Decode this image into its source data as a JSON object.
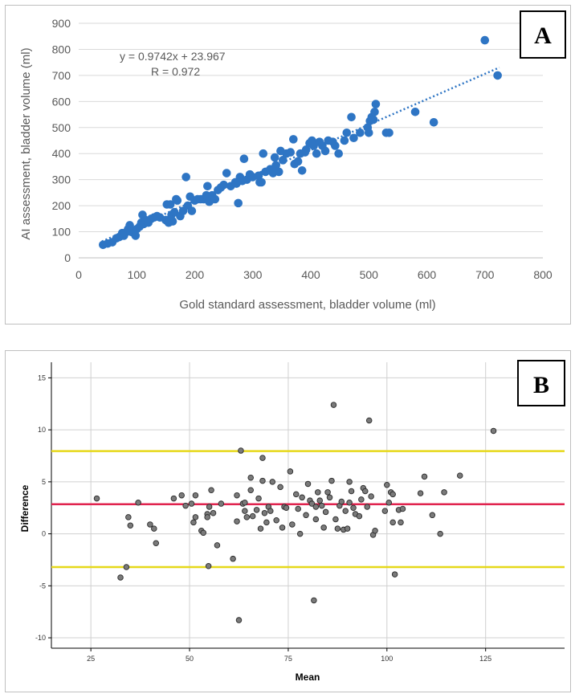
{
  "chart_data": [
    {
      "panel_label": "A",
      "type": "scatter",
      "xlabel": "Gold standard assessment, bladder volume (ml)",
      "ylabel": "AI assessment, bladder volume (ml)",
      "xlim": [
        0,
        800
      ],
      "ylim": [
        0,
        900
      ],
      "xticks": [
        0,
        100,
        200,
        300,
        400,
        500,
        600,
        700,
        800
      ],
      "yticks": [
        0,
        100,
        200,
        300,
        400,
        500,
        600,
        700,
        800,
        900
      ],
      "grid": "horizontal",
      "equation": "y = 0.9742x + 23.967",
      "r_label": "R = 0.972",
      "trendline": {
        "slope": 0.9742,
        "intercept": 23.967,
        "x_range": [
          40,
          725
        ],
        "style": "dotted"
      },
      "colors": {
        "points": "#2e75c4",
        "trend": "#2e75c4",
        "grid": "#d9d9d9"
      },
      "points": [
        [
          42,
          50
        ],
        [
          50,
          55
        ],
        [
          58,
          60
        ],
        [
          65,
          75
        ],
        [
          70,
          80
        ],
        [
          75,
          95
        ],
        [
          78,
          85
        ],
        [
          80,
          95
        ],
        [
          85,
          110
        ],
        [
          88,
          125
        ],
        [
          90,
          100
        ],
        [
          95,
          95
        ],
        [
          98,
          85
        ],
        [
          100,
          110
        ],
        [
          105,
          120
        ],
        [
          108,
          135
        ],
        [
          110,
          165
        ],
        [
          112,
          130
        ],
        [
          115,
          145
        ],
        [
          120,
          135
        ],
        [
          125,
          150
        ],
        [
          130,
          155
        ],
        [
          135,
          160
        ],
        [
          140,
          155
        ],
        [
          150,
          145
        ],
        [
          152,
          205
        ],
        [
          155,
          135
        ],
        [
          158,
          205
        ],
        [
          160,
          165
        ],
        [
          162,
          140
        ],
        [
          165,
          175
        ],
        [
          168,
          225
        ],
        [
          170,
          220
        ],
        [
          175,
          160
        ],
        [
          180,
          180
        ],
        [
          185,
          310
        ],
        [
          188,
          200
        ],
        [
          192,
          235
        ],
        [
          195,
          180
        ],
        [
          200,
          220
        ],
        [
          205,
          225
        ],
        [
          210,
          225
        ],
        [
          215,
          225
        ],
        [
          220,
          240
        ],
        [
          222,
          275
        ],
        [
          225,
          215
        ],
        [
          230,
          240
        ],
        [
          235,
          225
        ],
        [
          240,
          260
        ],
        [
          245,
          270
        ],
        [
          250,
          280
        ],
        [
          255,
          325
        ],
        [
          262,
          275
        ],
        [
          270,
          290
        ],
        [
          272,
          285
        ],
        [
          275,
          210
        ],
        [
          278,
          310
        ],
        [
          282,
          295
        ],
        [
          285,
          380
        ],
        [
          290,
          300
        ],
        [
          295,
          320
        ],
        [
          300,
          310
        ],
        [
          310,
          315
        ],
        [
          312,
          290
        ],
        [
          315,
          290
        ],
        [
          318,
          400
        ],
        [
          322,
          330
        ],
        [
          330,
          340
        ],
        [
          335,
          325
        ],
        [
          338,
          385
        ],
        [
          340,
          355
        ],
        [
          345,
          330
        ],
        [
          348,
          410
        ],
        [
          352,
          375
        ],
        [
          358,
          400
        ],
        [
          365,
          405
        ],
        [
          370,
          455
        ],
        [
          372,
          360
        ],
        [
          378,
          370
        ],
        [
          382,
          400
        ],
        [
          385,
          335
        ],
        [
          390,
          405
        ],
        [
          392,
          415
        ],
        [
          398,
          440
        ],
        [
          402,
          450
        ],
        [
          405,
          430
        ],
        [
          410,
          400
        ],
        [
          415,
          445
        ],
        [
          420,
          430
        ],
        [
          425,
          410
        ],
        [
          430,
          450
        ],
        [
          438,
          445
        ],
        [
          442,
          430
        ],
        [
          448,
          400
        ],
        [
          458,
          450
        ],
        [
          462,
          480
        ],
        [
          470,
          540
        ],
        [
          474,
          460
        ],
        [
          485,
          480
        ],
        [
          498,
          500
        ],
        [
          500,
          480
        ],
        [
          502,
          525
        ],
        [
          505,
          540
        ],
        [
          508,
          530
        ],
        [
          510,
          560
        ],
        [
          512,
          590
        ],
        [
          530,
          480
        ],
        [
          535,
          480
        ],
        [
          580,
          560
        ],
        [
          612,
          520
        ],
        [
          700,
          835
        ],
        [
          722,
          700
        ]
      ]
    },
    {
      "panel_label": "B",
      "type": "scatter",
      "xlabel": "Mean",
      "ylabel": "Difference",
      "xlim": [
        15,
        145
      ],
      "ylim": [
        -11,
        16.5
      ],
      "xticks": [
        25,
        50,
        75,
        100,
        125
      ],
      "yticks": [
        -10,
        -5,
        0,
        5,
        10,
        15
      ],
      "grid": "both",
      "reference_lines": [
        {
          "name": "upper-limit-of-agreement",
          "y": 7.95,
          "color": "#e6d81a"
        },
        {
          "name": "mean-difference",
          "y": 2.85,
          "color": "#e0234e"
        },
        {
          "name": "lower-limit-of-agreement",
          "y": -3.2,
          "color": "#e6d81a"
        }
      ],
      "colors": {
        "points": "#7a7a7a",
        "point_stroke": "#2b2b2b",
        "grid": "#d0d0d0"
      },
      "points": [
        [
          26.5,
          3.4
        ],
        [
          32.5,
          -4.2
        ],
        [
          34,
          -3.2
        ],
        [
          34.5,
          1.6
        ],
        [
          35,
          0.8
        ],
        [
          37,
          3.0
        ],
        [
          40,
          0.9
        ],
        [
          41,
          0.5
        ],
        [
          41.5,
          -0.9
        ],
        [
          46,
          3.4
        ],
        [
          48,
          3.7
        ],
        [
          49,
          2.7
        ],
        [
          50.5,
          2.9
        ],
        [
          51,
          1.1
        ],
        [
          51.5,
          3.7
        ],
        [
          51.5,
          1.6
        ],
        [
          53,
          0.3
        ],
        [
          53.5,
          0.1
        ],
        [
          54.5,
          1.9
        ],
        [
          54.5,
          1.6
        ],
        [
          55,
          2.6
        ],
        [
          55.5,
          4.2
        ],
        [
          54.8,
          -3.1
        ],
        [
          56,
          2.0
        ],
        [
          57,
          -1.1
        ],
        [
          58,
          2.9
        ],
        [
          61,
          -2.4
        ],
        [
          62,
          3.7
        ],
        [
          62,
          1.2
        ],
        [
          62.5,
          -8.3
        ],
        [
          63,
          8.0
        ],
        [
          63.5,
          2.9
        ],
        [
          64,
          3.0
        ],
        [
          64,
          2.2
        ],
        [
          64.5,
          1.6
        ],
        [
          65.5,
          5.4
        ],
        [
          65.5,
          4.2
        ],
        [
          66,
          1.7
        ],
        [
          67,
          2.3
        ],
        [
          67.5,
          3.4
        ],
        [
          68,
          0.5
        ],
        [
          68.5,
          7.3
        ],
        [
          68.5,
          5.1
        ],
        [
          69,
          2.0
        ],
        [
          69.5,
          1.1
        ],
        [
          70,
          2.6
        ],
        [
          70.5,
          2.2
        ],
        [
          71,
          5.0
        ],
        [
          72,
          1.3
        ],
        [
          73,
          4.5
        ],
        [
          73.5,
          0.6
        ],
        [
          74,
          2.6
        ],
        [
          74.5,
          2.5
        ],
        [
          75.5,
          6.0
        ],
        [
          76,
          0.9
        ],
        [
          77,
          3.8
        ],
        [
          77.5,
          2.4
        ],
        [
          78,
          0.0
        ],
        [
          78.5,
          3.5
        ],
        [
          79.5,
          1.8
        ],
        [
          80,
          4.8
        ],
        [
          80.5,
          3.2
        ],
        [
          81,
          2.9
        ],
        [
          81.5,
          -6.4
        ],
        [
          82,
          2.6
        ],
        [
          82,
          1.4
        ],
        [
          82.5,
          4.0
        ],
        [
          83,
          3.2
        ],
        [
          83.5,
          2.7
        ],
        [
          84,
          0.6
        ],
        [
          84.5,
          2.1
        ],
        [
          85,
          4.0
        ],
        [
          85.5,
          3.5
        ],
        [
          86,
          5.1
        ],
        [
          86.5,
          12.4
        ],
        [
          87,
          1.4
        ],
        [
          87.5,
          0.5
        ],
        [
          88,
          2.7
        ],
        [
          88.5,
          3.1
        ],
        [
          89,
          0.4
        ],
        [
          89.5,
          2.2
        ],
        [
          90,
          0.5
        ],
        [
          90.5,
          3.0
        ],
        [
          90.5,
          5.0
        ],
        [
          91,
          4.1
        ],
        [
          91.5,
          2.5
        ],
        [
          92,
          1.9
        ],
        [
          93,
          1.7
        ],
        [
          93.5,
          3.3
        ],
        [
          94,
          4.4
        ],
        [
          94.5,
          4.1
        ],
        [
          95,
          2.6
        ],
        [
          95.5,
          10.9
        ],
        [
          96,
          3.6
        ],
        [
          96.5,
          -0.1
        ],
        [
          97,
          0.3
        ],
        [
          99.5,
          2.2
        ],
        [
          100,
          4.7
        ],
        [
          100.5,
          3.0
        ],
        [
          101,
          4.0
        ],
        [
          101.5,
          3.8
        ],
        [
          101.5,
          1.1
        ],
        [
          102,
          -3.9
        ],
        [
          103,
          2.3
        ],
        [
          103.5,
          1.1
        ],
        [
          104,
          2.4
        ],
        [
          108.5,
          3.9
        ],
        [
          109.5,
          5.5
        ],
        [
          111.5,
          1.8
        ],
        [
          113.5,
          0.0
        ],
        [
          114.5,
          4.0
        ],
        [
          118.5,
          5.6
        ],
        [
          127,
          9.9
        ]
      ]
    }
  ]
}
